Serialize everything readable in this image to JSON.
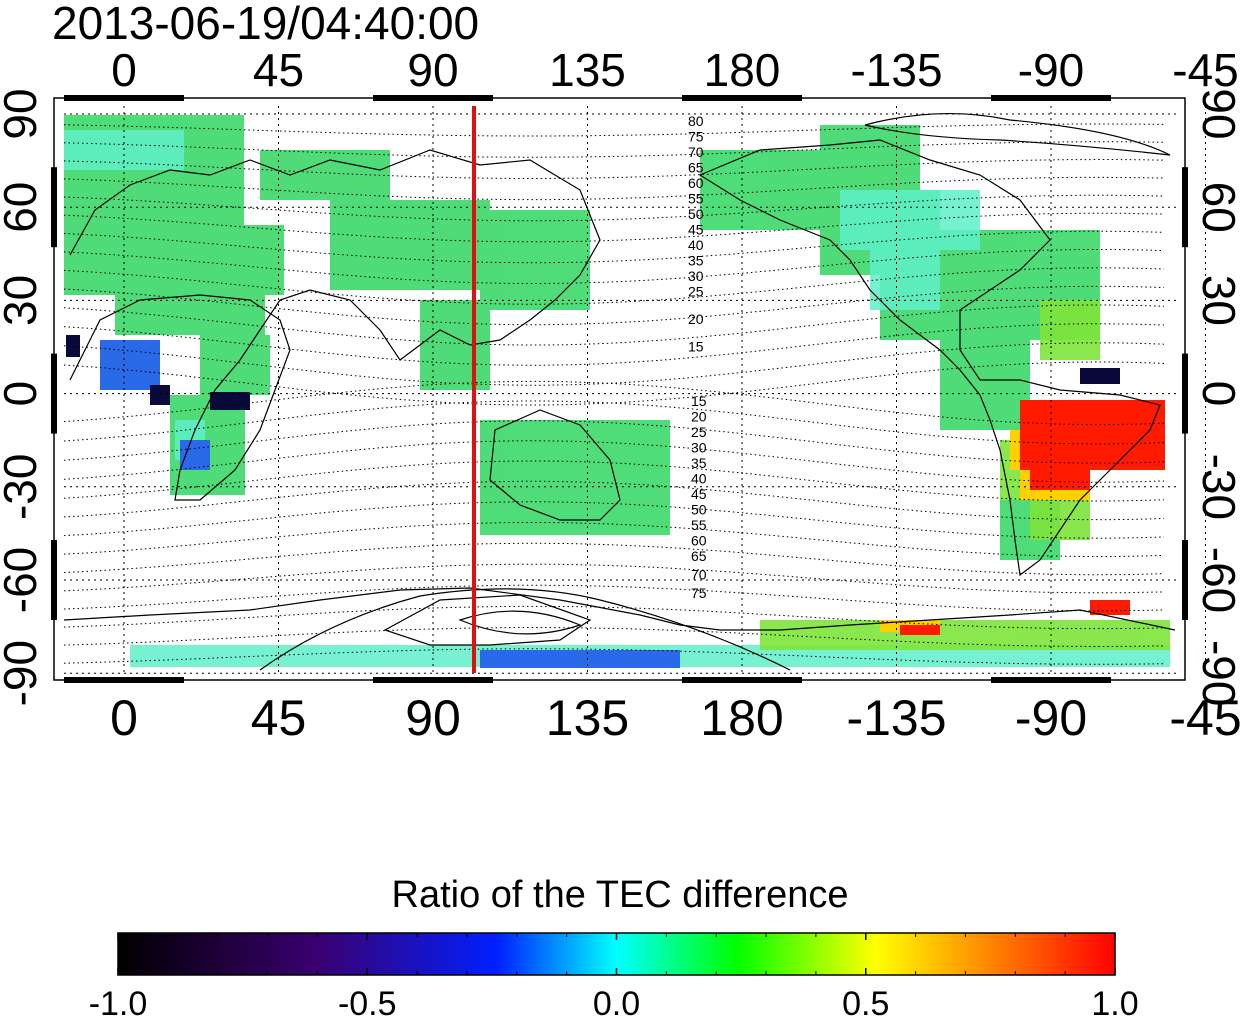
{
  "timestamp": "2013-06-19/04:40:00",
  "map": {
    "lon_ticks": [
      "0",
      "45",
      "90",
      "135",
      "180",
      "-135",
      "-90",
      "-45"
    ],
    "lat_ticks": [
      "90",
      "60",
      "30",
      "0",
      "-30",
      "-60",
      "-90"
    ],
    "contour_labels_north": [
      "80",
      "75",
      "70",
      "65",
      "60",
      "55",
      "50",
      "45",
      "40",
      "35",
      "30",
      "25",
      "20",
      "15"
    ],
    "contour_labels_south": [
      "15",
      "20",
      "25",
      "30",
      "35",
      "40",
      "45",
      "50",
      "55",
      "60",
      "65",
      "70",
      "75"
    ],
    "marker_line_longitude": 110,
    "marker_line_color": "#dd1111",
    "grid": "dotted"
  },
  "colorbar": {
    "title": "Ratio of the TEC difference",
    "tick_labels": [
      "-1.0",
      "-0.5",
      "0.0",
      "0.5",
      "1.0"
    ],
    "range": [
      -1.0,
      1.0
    ],
    "colormap": [
      "#000000",
      "#3a0070",
      "#0000ff",
      "#00ffff",
      "#00ff00",
      "#ffff00",
      "#ff0000"
    ]
  }
}
